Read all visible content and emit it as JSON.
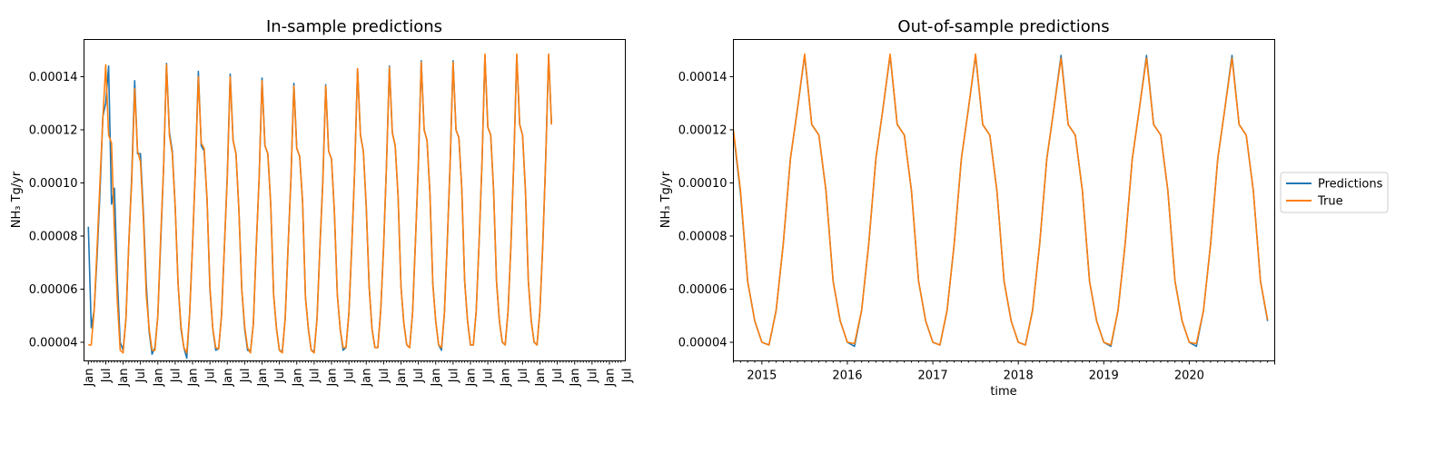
{
  "colors": {
    "predictions": "#1f77b4",
    "true": "#ff7f0e"
  },
  "legend": {
    "placement": "right",
    "predictions_label": "Predictions",
    "true_label": "True"
  },
  "chart_data": [
    {
      "type": "line",
      "title": "In-sample predictions",
      "xlabel": "",
      "ylabel": "NH₃ Tg/yr",
      "ylim": [
        3.3e-05,
        0.000154
      ],
      "y_ticks": [
        "0.00004",
        "0.00006",
        "0.00008",
        "0.00010",
        "0.00012",
        "0.00014"
      ],
      "x_tick_labels": [
        "Jan",
        "Jul",
        "Jan",
        "Jul",
        "Jan",
        "Jul",
        "Jan",
        "Jul",
        "Jan",
        "Jul",
        "Jan",
        "Jul",
        "Jan",
        "Jul",
        "Jan",
        "Jul",
        "Jan",
        "Jul",
        "Jan",
        "Jul",
        "Jan",
        "Jul",
        "Jan",
        "Jul",
        "Jan",
        "Jul",
        "Jan",
        "Jul",
        "Jan",
        "Jul",
        "Jan",
        "Jul"
      ],
      "x_range_months": [
        -1.5,
        185.5
      ],
      "series": [
        {
          "name": "Predictions",
          "values": [
            8.35e-05,
            4.55e-05,
            5.2e-05,
            7.2e-05,
            9.6e-05,
            0.000125,
            0.00013,
            0.000144,
            9.2e-05,
            9.8e-05,
            6.4e-05,
            4e-05,
            3.7e-05,
            4.9e-05,
            7.8e-05,
            0.000103,
            0.0001385,
            0.000111,
            0.000111,
            8.9e-05,
            6.2e-05,
            4.4e-05,
            3.55e-05,
            3.8e-05,
            5e-05,
            7.8e-05,
            0.000106,
            0.000145,
            0.000119,
            0.000112,
            9.1e-05,
            6.2e-05,
            4.5e-05,
            3.8e-05,
            3.4e-05,
            5.1e-05,
            7.7e-05,
            0.000106,
            0.000142,
            0.000114,
            0.000112,
            9.4e-05,
            6e-05,
            4.5e-05,
            3.7e-05,
            3.75e-05,
            5e-05,
            7.6e-05,
            0.000103,
            0.000141,
            0.000116,
            0.000111,
            9e-05,
            6e-05,
            4.5e-05,
            3.7e-05,
            3.65e-05,
            4.7e-05,
            7.6e-05,
            0.000102,
            0.0001395,
            0.000114,
            0.000111,
            9.2e-05,
            5.8e-05,
            4.5e-05,
            3.7e-05,
            3.65e-05,
            4.9e-05,
            7.6e-05,
            0.000102,
            0.0001375,
            0.000113,
            0.00011,
            9.3e-05,
            5.7e-05,
            4.5e-05,
            3.7e-05,
            3.65e-05,
            4.9e-05,
            7.6e-05,
            0.000101,
            0.000137,
            0.000112,
            0.000109,
            8.9e-05,
            5.8e-05,
            4.5e-05,
            3.7e-05,
            3.8e-05,
            5.1e-05,
            7.6e-05,
            0.000105,
            0.000143,
            0.000118,
            0.000112,
            9.1e-05,
            6.1e-05,
            4.5e-05,
            3.8e-05,
            3.8e-05,
            5.2e-05,
            7.6e-05,
            0.000107,
            0.000144,
            0.000119,
            0.000114,
            9.5e-05,
            6.1e-05,
            4.7e-05,
            3.9e-05,
            3.8e-05,
            5.1e-05,
            7.8e-05,
            0.000107,
            0.000146,
            0.00012,
            0.000116,
            9.6e-05,
            6.2e-05,
            4.8e-05,
            3.9e-05,
            3.7e-05,
            5.1e-05,
            7.8e-05,
            0.000108,
            0.000146,
            0.00012,
            0.000117,
            9.8e-05,
            6.3e-05,
            4.8e-05,
            3.9e-05,
            3.9e-05,
            5.2e-05,
            7.8e-05,
            0.000108,
            0.000148,
            0.000121,
            0.000118,
            9.7e-05,
            6.3e-05,
            4.8e-05,
            4e-05,
            3.9e-05,
            5.2e-05,
            7.7e-05,
            0.000109,
            0.000148,
            0.000122,
            0.000118,
            9.7e-05,
            6.3e-05,
            4.8e-05,
            4e-05,
            3.9e-05,
            5.2e-05,
            7.7e-05,
            0.000109,
            0.000148,
            0.000122
          ]
        },
        {
          "name": "True",
          "values": [
            3.9e-05,
            3.9e-05,
            5.2e-05,
            7.5e-05,
            0.0001,
            0.000124,
            0.0001445,
            0.000118,
            0.000115,
            8.2e-05,
            5.6e-05,
            3.7e-05,
            3.6e-05,
            4.9e-05,
            7.8e-05,
            0.000101,
            0.0001355,
            0.000112,
            0.000108,
            8.7e-05,
            5.8e-05,
            4.5e-05,
            3.7e-05,
            3.7e-05,
            5e-05,
            8e-05,
            0.000106,
            0.0001445,
            0.000118,
            0.000111,
            9.1e-05,
            6.2e-05,
            4.6e-05,
            3.8e-05,
            3.6e-05,
            5.1e-05,
            7.7e-05,
            0.000106,
            0.00014,
            0.000115,
            0.000113,
            9.4e-05,
            6.1e-05,
            4.5e-05,
            3.8e-05,
            3.75e-05,
            5e-05,
            7.6e-05,
            0.000102,
            0.00014,
            0.000116,
            0.000111,
            9e-05,
            6e-05,
            4.6e-05,
            3.8e-05,
            3.6e-05,
            4.7e-05,
            7.6e-05,
            0.000102,
            0.0001385,
            0.000114,
            0.000111,
            9.2e-05,
            5.8e-05,
            4.5e-05,
            3.7e-05,
            3.6e-05,
            4.9e-05,
            7.6e-05,
            0.000102,
            0.0001365,
            0.000113,
            0.00011,
            9.3e-05,
            5.7e-05,
            4.5e-05,
            3.7e-05,
            3.6e-05,
            4.9e-05,
            7.6e-05,
            0.0001,
            0.0001365,
            0.000112,
            0.000109,
            8.9e-05,
            5.8e-05,
            4.5e-05,
            3.8e-05,
            3.8e-05,
            5.1e-05,
            7.6e-05,
            0.000105,
            0.000143,
            0.000118,
            0.000112,
            9.1e-05,
            6.1e-05,
            4.5e-05,
            3.8e-05,
            3.8e-05,
            5.2e-05,
            7.6e-05,
            0.000107,
            0.0001435,
            0.000119,
            0.000114,
            9.5e-05,
            6.1e-05,
            4.7e-05,
            3.9e-05,
            3.8e-05,
            5.1e-05,
            7.8e-05,
            0.000107,
            0.0001455,
            0.00012,
            0.000116,
            9.6e-05,
            6.2e-05,
            4.8e-05,
            3.9e-05,
            3.8e-05,
            5.1e-05,
            7.8e-05,
            0.000108,
            0.0001455,
            0.00012,
            0.000117,
            9.8e-05,
            6.3e-05,
            4.8e-05,
            3.9e-05,
            3.9e-05,
            5.2e-05,
            7.8e-05,
            0.000108,
            0.0001485,
            0.000121,
            0.000118,
            9.7e-05,
            6.3e-05,
            4.8e-05,
            4e-05,
            3.9e-05,
            5.2e-05,
            7.7e-05,
            0.000109,
            0.0001485,
            0.000122,
            0.000118,
            9.7e-05,
            6.3e-05,
            4.8e-05,
            4e-05,
            3.9e-05,
            5.2e-05,
            7.7e-05,
            0.000109,
            0.0001485,
            0.000122
          ]
        }
      ]
    },
    {
      "type": "line",
      "title": "Out-of-sample predictions",
      "xlabel": "time",
      "ylabel": "NH₃ Tg/yr",
      "x_start": "2014-09",
      "x_range": [
        "2014-09",
        "2021-01"
      ],
      "ylim": [
        3.3e-05,
        0.000154
      ],
      "y_ticks": [
        "0.00004",
        "0.00006",
        "0.00008",
        "0.00010",
        "0.00012",
        "0.00014"
      ],
      "x_ticks": [
        "2015",
        "2016",
        "2017",
        "2018",
        "2019",
        "2020"
      ],
      "series": [
        {
          "name": "Predictions",
          "values": [
            0.000119,
            9.6e-05,
            6.3e-05,
            4.8e-05,
            4e-05,
            3.9e-05,
            5.2e-05,
            7.7e-05,
            0.000109,
            0.000128,
            0.000148,
            0.000122,
            0.000118,
            9.7e-05,
            6.3e-05,
            4.8e-05,
            4e-05,
            3.85e-05,
            5.2e-05,
            7.7e-05,
            0.000109,
            0.000128,
            0.000148,
            0.000122,
            0.000118,
            9.7e-05,
            6.3e-05,
            4.8e-05,
            4e-05,
            3.9e-05,
            5.2e-05,
            7.7e-05,
            0.000109,
            0.000128,
            0.000148,
            0.000122,
            0.000118,
            9.7e-05,
            6.3e-05,
            4.8e-05,
            4e-05,
            3.9e-05,
            5.2e-05,
            7.7e-05,
            0.000109,
            0.000128,
            0.000148,
            0.000122,
            0.000118,
            9.7e-05,
            6.3e-05,
            4.8e-05,
            4e-05,
            3.85e-05,
            5.2e-05,
            7.7e-05,
            0.000109,
            0.000128,
            0.000148,
            0.000122,
            0.000118,
            9.7e-05,
            6.3e-05,
            4.8e-05,
            4e-05,
            3.85e-05,
            5.2e-05,
            7.7e-05,
            0.000109,
            0.000128,
            0.000148,
            0.000122,
            0.000118,
            9.7e-05,
            6.3e-05,
            4.8e-05
          ]
        },
        {
          "name": "True",
          "values": [
            0.00012,
            9.7e-05,
            6.3e-05,
            4.8e-05,
            4e-05,
            3.9e-05,
            5.2e-05,
            7.7e-05,
            0.000109,
            0.000128,
            0.0001485,
            0.000122,
            0.000118,
            9.7e-05,
            6.3e-05,
            4.8e-05,
            4e-05,
            3.95e-05,
            5.2e-05,
            7.7e-05,
            0.000109,
            0.000128,
            0.0001485,
            0.000122,
            0.000118,
            9.7e-05,
            6.3e-05,
            4.8e-05,
            4e-05,
            3.9e-05,
            5.2e-05,
            7.7e-05,
            0.000109,
            0.000128,
            0.0001485,
            0.000122,
            0.000118,
            9.7e-05,
            6.3e-05,
            4.8e-05,
            4e-05,
            3.9e-05,
            5.2e-05,
            7.7e-05,
            0.000109,
            0.000128,
            0.000147,
            0.000122,
            0.000118,
            9.7e-05,
            6.3e-05,
            4.8e-05,
            4e-05,
            3.9e-05,
            5.2e-05,
            7.7e-05,
            0.000109,
            0.000128,
            0.000147,
            0.000122,
            0.000118,
            9.7e-05,
            6.3e-05,
            4.8e-05,
            4e-05,
            3.95e-05,
            5.2e-05,
            7.7e-05,
            0.000109,
            0.000128,
            0.000147,
            0.000122,
            0.000118,
            9.7e-05,
            6.3e-05,
            4.85e-05
          ]
        }
      ]
    }
  ]
}
